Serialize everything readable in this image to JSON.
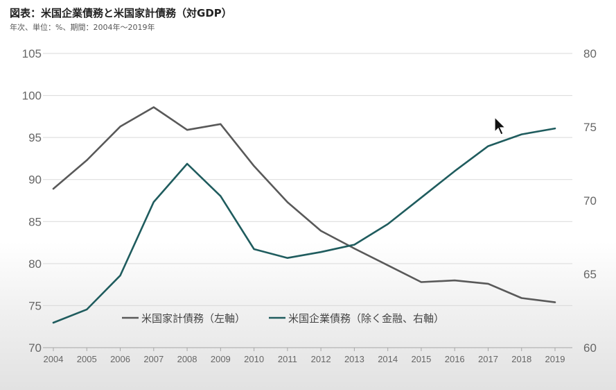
{
  "header": {
    "title": "図表：米国企業債務と米国家計債務（対GDP）",
    "subtitle": "年次、単位：%、期間：2004年～2019年"
  },
  "colors": {
    "household": "#595959",
    "corporate": "#1f5c5e",
    "grid": "#d9d9d9",
    "axis": "#a6a6a6"
  },
  "chart_data": {
    "type": "line",
    "x": [
      "2004",
      "2005",
      "2006",
      "2007",
      "2008",
      "2009",
      "2010",
      "2011",
      "2012",
      "2013",
      "2014",
      "2015",
      "2016",
      "2017",
      "2018",
      "2019"
    ],
    "left_axis": {
      "ylim": [
        70,
        105
      ],
      "ticks": [
        "70",
        "75",
        "80",
        "85",
        "90",
        "95",
        "100",
        "105"
      ]
    },
    "right_axis": {
      "ylim": [
        60,
        80
      ],
      "ticks": [
        "60",
        "65",
        "70",
        "75",
        "80"
      ]
    },
    "grid": true,
    "legend_position": "bottom-center",
    "series": [
      {
        "name": "米国家計債務（左軸）",
        "axis": "left",
        "color": "#595959",
        "values": [
          88.9,
          92.3,
          96.3,
          98.6,
          95.9,
          96.6,
          91.6,
          87.3,
          83.9,
          81.8,
          79.8,
          77.8,
          78.0,
          77.6,
          75.9,
          75.4
        ]
      },
      {
        "name": "米国企業債務（除く金融、右軸）",
        "axis": "right",
        "color": "#1f5c5e",
        "values": [
          61.7,
          62.6,
          64.9,
          69.9,
          72.5,
          70.3,
          66.7,
          66.1,
          66.5,
          67.0,
          68.4,
          70.2,
          72.0,
          73.7,
          74.5,
          74.9
        ]
      }
    ]
  }
}
